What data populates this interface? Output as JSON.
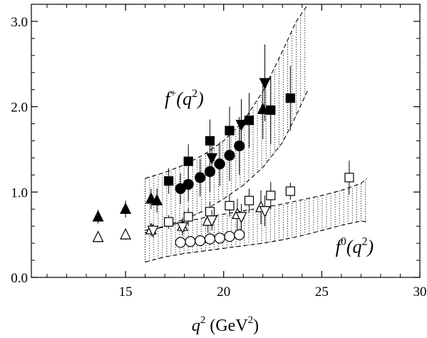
{
  "chart_data": {
    "type": "scatter",
    "title": "",
    "xlabel_var": "q",
    "xlabel_sup": "2",
    "xlabel_unit": "(GeV",
    "xlabel_unit_sup": "2",
    "xlabel_unit_close": ")",
    "ylabel": "",
    "xlim": [
      10.2,
      30
    ],
    "ylim": [
      0,
      3.2
    ],
    "xticks": [
      15,
      20,
      25,
      30
    ],
    "xtick_labels": [
      "15",
      "20",
      "25",
      "30"
    ],
    "yticks": [
      0.0,
      1.0,
      2.0,
      3.0
    ],
    "ytick_labels": [
      "0.0",
      "1.0",
      "2.0",
      "3.0"
    ],
    "grid": false,
    "legend": "none",
    "annotations": {
      "fplus": {
        "main": "f",
        "sup": "+",
        "rest": "(q",
        "rest_sup": "2",
        "close": ")",
        "x": 17.0,
        "y": 2.02
      },
      "fzero": {
        "main": "f",
        "sup": "0",
        "rest": "(q",
        "rest_sup": "2",
        "close": ")",
        "x": 25.7,
        "y": 0.29
      }
    },
    "bands": [
      {
        "name": "f+ band",
        "x": [
          16.0,
          17.0,
          18.0,
          19.0,
          20.0,
          21.0,
          22.0,
          23.0,
          23.7,
          24.3
        ],
        "lower": [
          0.52,
          0.6,
          0.68,
          0.78,
          0.92,
          1.08,
          1.29,
          1.58,
          1.9,
          2.2
        ],
        "upper": [
          1.16,
          1.23,
          1.32,
          1.44,
          1.6,
          1.83,
          2.18,
          2.65,
          3.0,
          3.2
        ]
      },
      {
        "name": "f0 band",
        "x": [
          16.0,
          17.0,
          18.0,
          19.0,
          20.0,
          21.0,
          22.0,
          23.0,
          24.0,
          25.0,
          26.0,
          27.0,
          27.3
        ],
        "lower": [
          0.18,
          0.24,
          0.28,
          0.31,
          0.34,
          0.37,
          0.4,
          0.44,
          0.49,
          0.55,
          0.61,
          0.66,
          0.65
        ],
        "upper": [
          0.55,
          0.6,
          0.65,
          0.7,
          0.74,
          0.78,
          0.82,
          0.86,
          0.91,
          0.96,
          1.02,
          1.1,
          1.16
        ]
      }
    ],
    "series": [
      {
        "marker": "triangle-up-filled",
        "points": [
          {
            "x": 13.6,
            "y": 0.71,
            "err": 0.08
          },
          {
            "x": 15.0,
            "y": 0.8,
            "err": 0.1
          },
          {
            "x": 16.3,
            "y": 0.92,
            "err": 0.12
          },
          {
            "x": 16.6,
            "y": 0.9,
            "err": 0.14
          },
          {
            "x": 22.0,
            "y": 1.97,
            "err": 0.35
          }
        ]
      },
      {
        "marker": "triangle-up-open",
        "points": [
          {
            "x": 13.6,
            "y": 0.47,
            "err": 0.06
          },
          {
            "x": 15.0,
            "y": 0.5,
            "err": 0.06
          },
          {
            "x": 16.3,
            "y": 0.56,
            "err": 0.08
          },
          {
            "x": 17.9,
            "y": 0.6,
            "err": 0.1
          },
          {
            "x": 19.2,
            "y": 0.66,
            "err": 0.14
          },
          {
            "x": 20.7,
            "y": 0.74,
            "err": 0.18
          },
          {
            "x": 21.9,
            "y": 0.82,
            "err": 0.2
          }
        ]
      },
      {
        "marker": "square-filled",
        "points": [
          {
            "x": 17.2,
            "y": 1.13,
            "err": 0.15
          },
          {
            "x": 18.2,
            "y": 1.36,
            "err": 0.2
          },
          {
            "x": 19.3,
            "y": 1.6,
            "err": 0.25
          },
          {
            "x": 20.3,
            "y": 1.72,
            "err": 0.28
          },
          {
            "x": 21.3,
            "y": 1.84,
            "err": 0.32
          },
          {
            "x": 22.4,
            "y": 1.96,
            "err": 0.4
          },
          {
            "x": 23.4,
            "y": 2.1,
            "err": 0.38
          }
        ]
      },
      {
        "marker": "square-open",
        "points": [
          {
            "x": 17.2,
            "y": 0.65,
            "err": 0.08
          },
          {
            "x": 18.2,
            "y": 0.71,
            "err": 0.1
          },
          {
            "x": 19.3,
            "y": 0.77,
            "err": 0.12
          },
          {
            "x": 20.3,
            "y": 0.84,
            "err": 0.13
          },
          {
            "x": 21.3,
            "y": 0.9,
            "err": 0.14
          },
          {
            "x": 22.4,
            "y": 0.96,
            "err": 0.16
          },
          {
            "x": 23.4,
            "y": 1.01,
            "err": 0.1
          },
          {
            "x": 26.4,
            "y": 1.17,
            "err": 0.2
          }
        ]
      },
      {
        "marker": "circle-filled",
        "points": [
          {
            "x": 17.8,
            "y": 1.04,
            "err": 0.18
          },
          {
            "x": 18.2,
            "y": 1.09,
            "err": 0.2
          },
          {
            "x": 18.8,
            "y": 1.17,
            "err": 0.22
          },
          {
            "x": 19.3,
            "y": 1.24,
            "err": 0.24
          },
          {
            "x": 19.8,
            "y": 1.33,
            "err": 0.26
          },
          {
            "x": 20.3,
            "y": 1.43,
            "err": 0.3
          },
          {
            "x": 20.8,
            "y": 1.54,
            "err": 0.34
          }
        ]
      },
      {
        "marker": "circle-open",
        "points": [
          {
            "x": 17.8,
            "y": 0.41,
            "err": 0.05
          },
          {
            "x": 18.3,
            "y": 0.42,
            "err": 0.05
          },
          {
            "x": 18.8,
            "y": 0.43,
            "err": 0.05
          },
          {
            "x": 19.3,
            "y": 0.45,
            "err": 0.05
          },
          {
            "x": 19.8,
            "y": 0.46,
            "err": 0.05
          },
          {
            "x": 20.3,
            "y": 0.48,
            "err": 0.06
          },
          {
            "x": 20.8,
            "y": 0.5,
            "err": 0.06
          }
        ]
      },
      {
        "marker": "triangle-down-filled",
        "points": [
          {
            "x": 19.4,
            "y": 1.4,
            "err": 0.22
          },
          {
            "x": 20.9,
            "y": 1.79,
            "err": 0.3
          },
          {
            "x": 22.1,
            "y": 2.28,
            "err": 0.45
          }
        ]
      },
      {
        "marker": "triangle-down-open",
        "points": [
          {
            "x": 16.4,
            "y": 0.55,
            "err": 0.08
          },
          {
            "x": 17.9,
            "y": 0.59,
            "err": 0.1
          },
          {
            "x": 19.4,
            "y": 0.67,
            "err": 0.12
          },
          {
            "x": 20.9,
            "y": 0.71,
            "err": 0.15
          },
          {
            "x": 22.1,
            "y": 0.78,
            "err": 0.18
          }
        ]
      }
    ]
  }
}
